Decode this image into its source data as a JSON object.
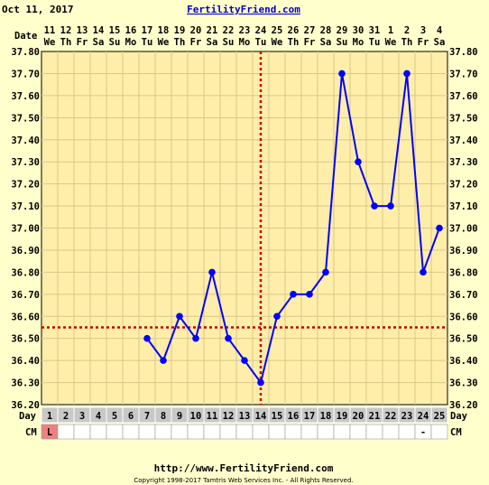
{
  "header": {
    "date": "Oct 11, 2017",
    "site": "FertilityFriend.com"
  },
  "footer": {
    "url": "http://www.FertilityFriend.com",
    "copyright": "Copyright 1998-2017 Tamtris Web Services Inc. - All Rights Reserved."
  },
  "labels": {
    "date_row": "Date",
    "day_row": "Day",
    "cm_row": "CM"
  },
  "colors": {
    "background": "#ffffcc",
    "plot_bg": "#ffeeaa",
    "grid": "#d9c68a",
    "line": "#0000ff",
    "marker": "#0000ff",
    "coverline": "#cc0000",
    "ovulation_line": "#cc0000",
    "day_cell": "#c8c8c8",
    "cm_period": "#f08080"
  },
  "chart_data": {
    "type": "line",
    "x_dates": [
      "11",
      "12",
      "13",
      "14",
      "15",
      "16",
      "17",
      "18",
      "19",
      "20",
      "21",
      "22",
      "23",
      "24",
      "25",
      "26",
      "27",
      "28",
      "29",
      "30",
      "31",
      "1",
      "2",
      "3",
      "4"
    ],
    "x_weekdays": [
      "We",
      "Th",
      "Fr",
      "Sa",
      "Su",
      "Mo",
      "Tu",
      "We",
      "Th",
      "Fr",
      "Sa",
      "Su",
      "Mo",
      "Tu",
      "We",
      "Th",
      "Fr",
      "Sa",
      "Su",
      "Mo",
      "Tu",
      "We",
      "Th",
      "Fr",
      "Sa"
    ],
    "days": [
      "1",
      "2",
      "3",
      "4",
      "5",
      "6",
      "7",
      "8",
      "9",
      "10",
      "11",
      "12",
      "13",
      "14",
      "15",
      "16",
      "17",
      "18",
      "19",
      "20",
      "21",
      "22",
      "23",
      "24",
      "25"
    ],
    "cm": [
      "L",
      "",
      "",
      "",
      "",
      "",
      "",
      "",
      "",
      "",
      "",
      "",
      "",
      "",
      "",
      "",
      "",
      "",
      "",
      "",
      "",
      "",
      "",
      "-",
      ""
    ],
    "series": [
      {
        "values": [
          null,
          null,
          null,
          null,
          null,
          null,
          36.5,
          36.4,
          36.6,
          36.5,
          36.8,
          36.5,
          36.4,
          36.3,
          36.6,
          36.7,
          36.7,
          36.8,
          37.7,
          37.3,
          37.1,
          37.1,
          37.7,
          36.8,
          37.0
        ]
      }
    ],
    "y_ticks": [
      "36.20",
      "36.30",
      "36.40",
      "36.50",
      "36.60",
      "36.70",
      "36.80",
      "36.90",
      "37.00",
      "37.10",
      "37.20",
      "37.30",
      "37.40",
      "37.50",
      "37.60",
      "37.70",
      "37.80"
    ],
    "ylim": [
      36.2,
      37.8
    ],
    "coverline": 36.55,
    "ovulation_day": 14,
    "grid": true
  }
}
